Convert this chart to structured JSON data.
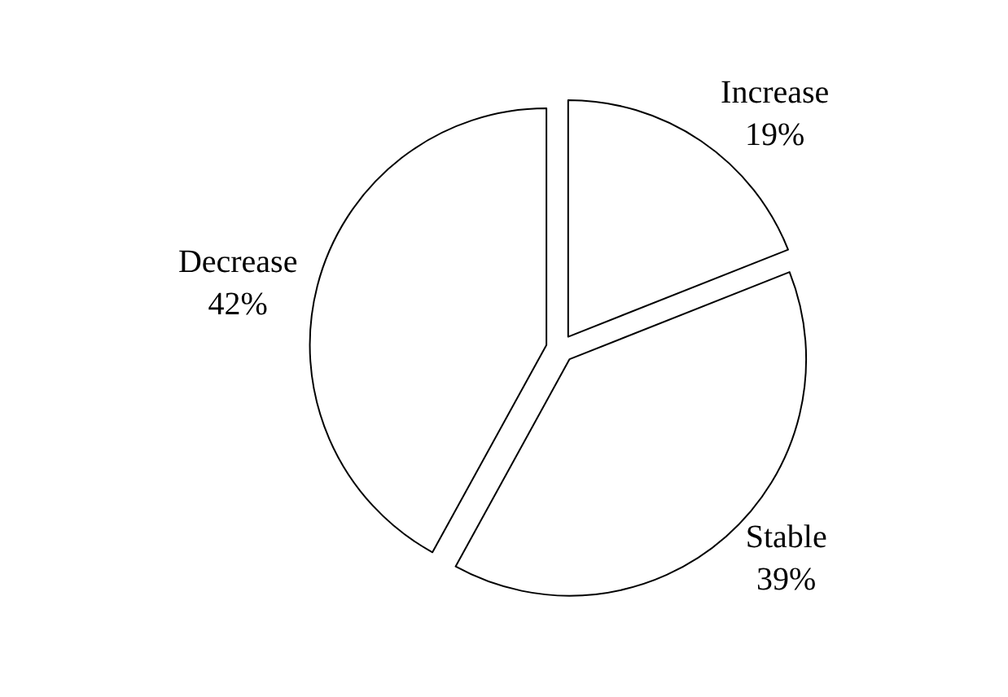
{
  "chart_data": {
    "type": "pie",
    "categories": [
      "Increase",
      "Stable",
      "Decrease"
    ],
    "values": [
      19,
      39,
      42
    ],
    "colors": [
      "#ffffff",
      "#ffffff",
      "#ffffff"
    ],
    "value_labels": [
      "19%",
      "39%",
      "42%"
    ]
  }
}
